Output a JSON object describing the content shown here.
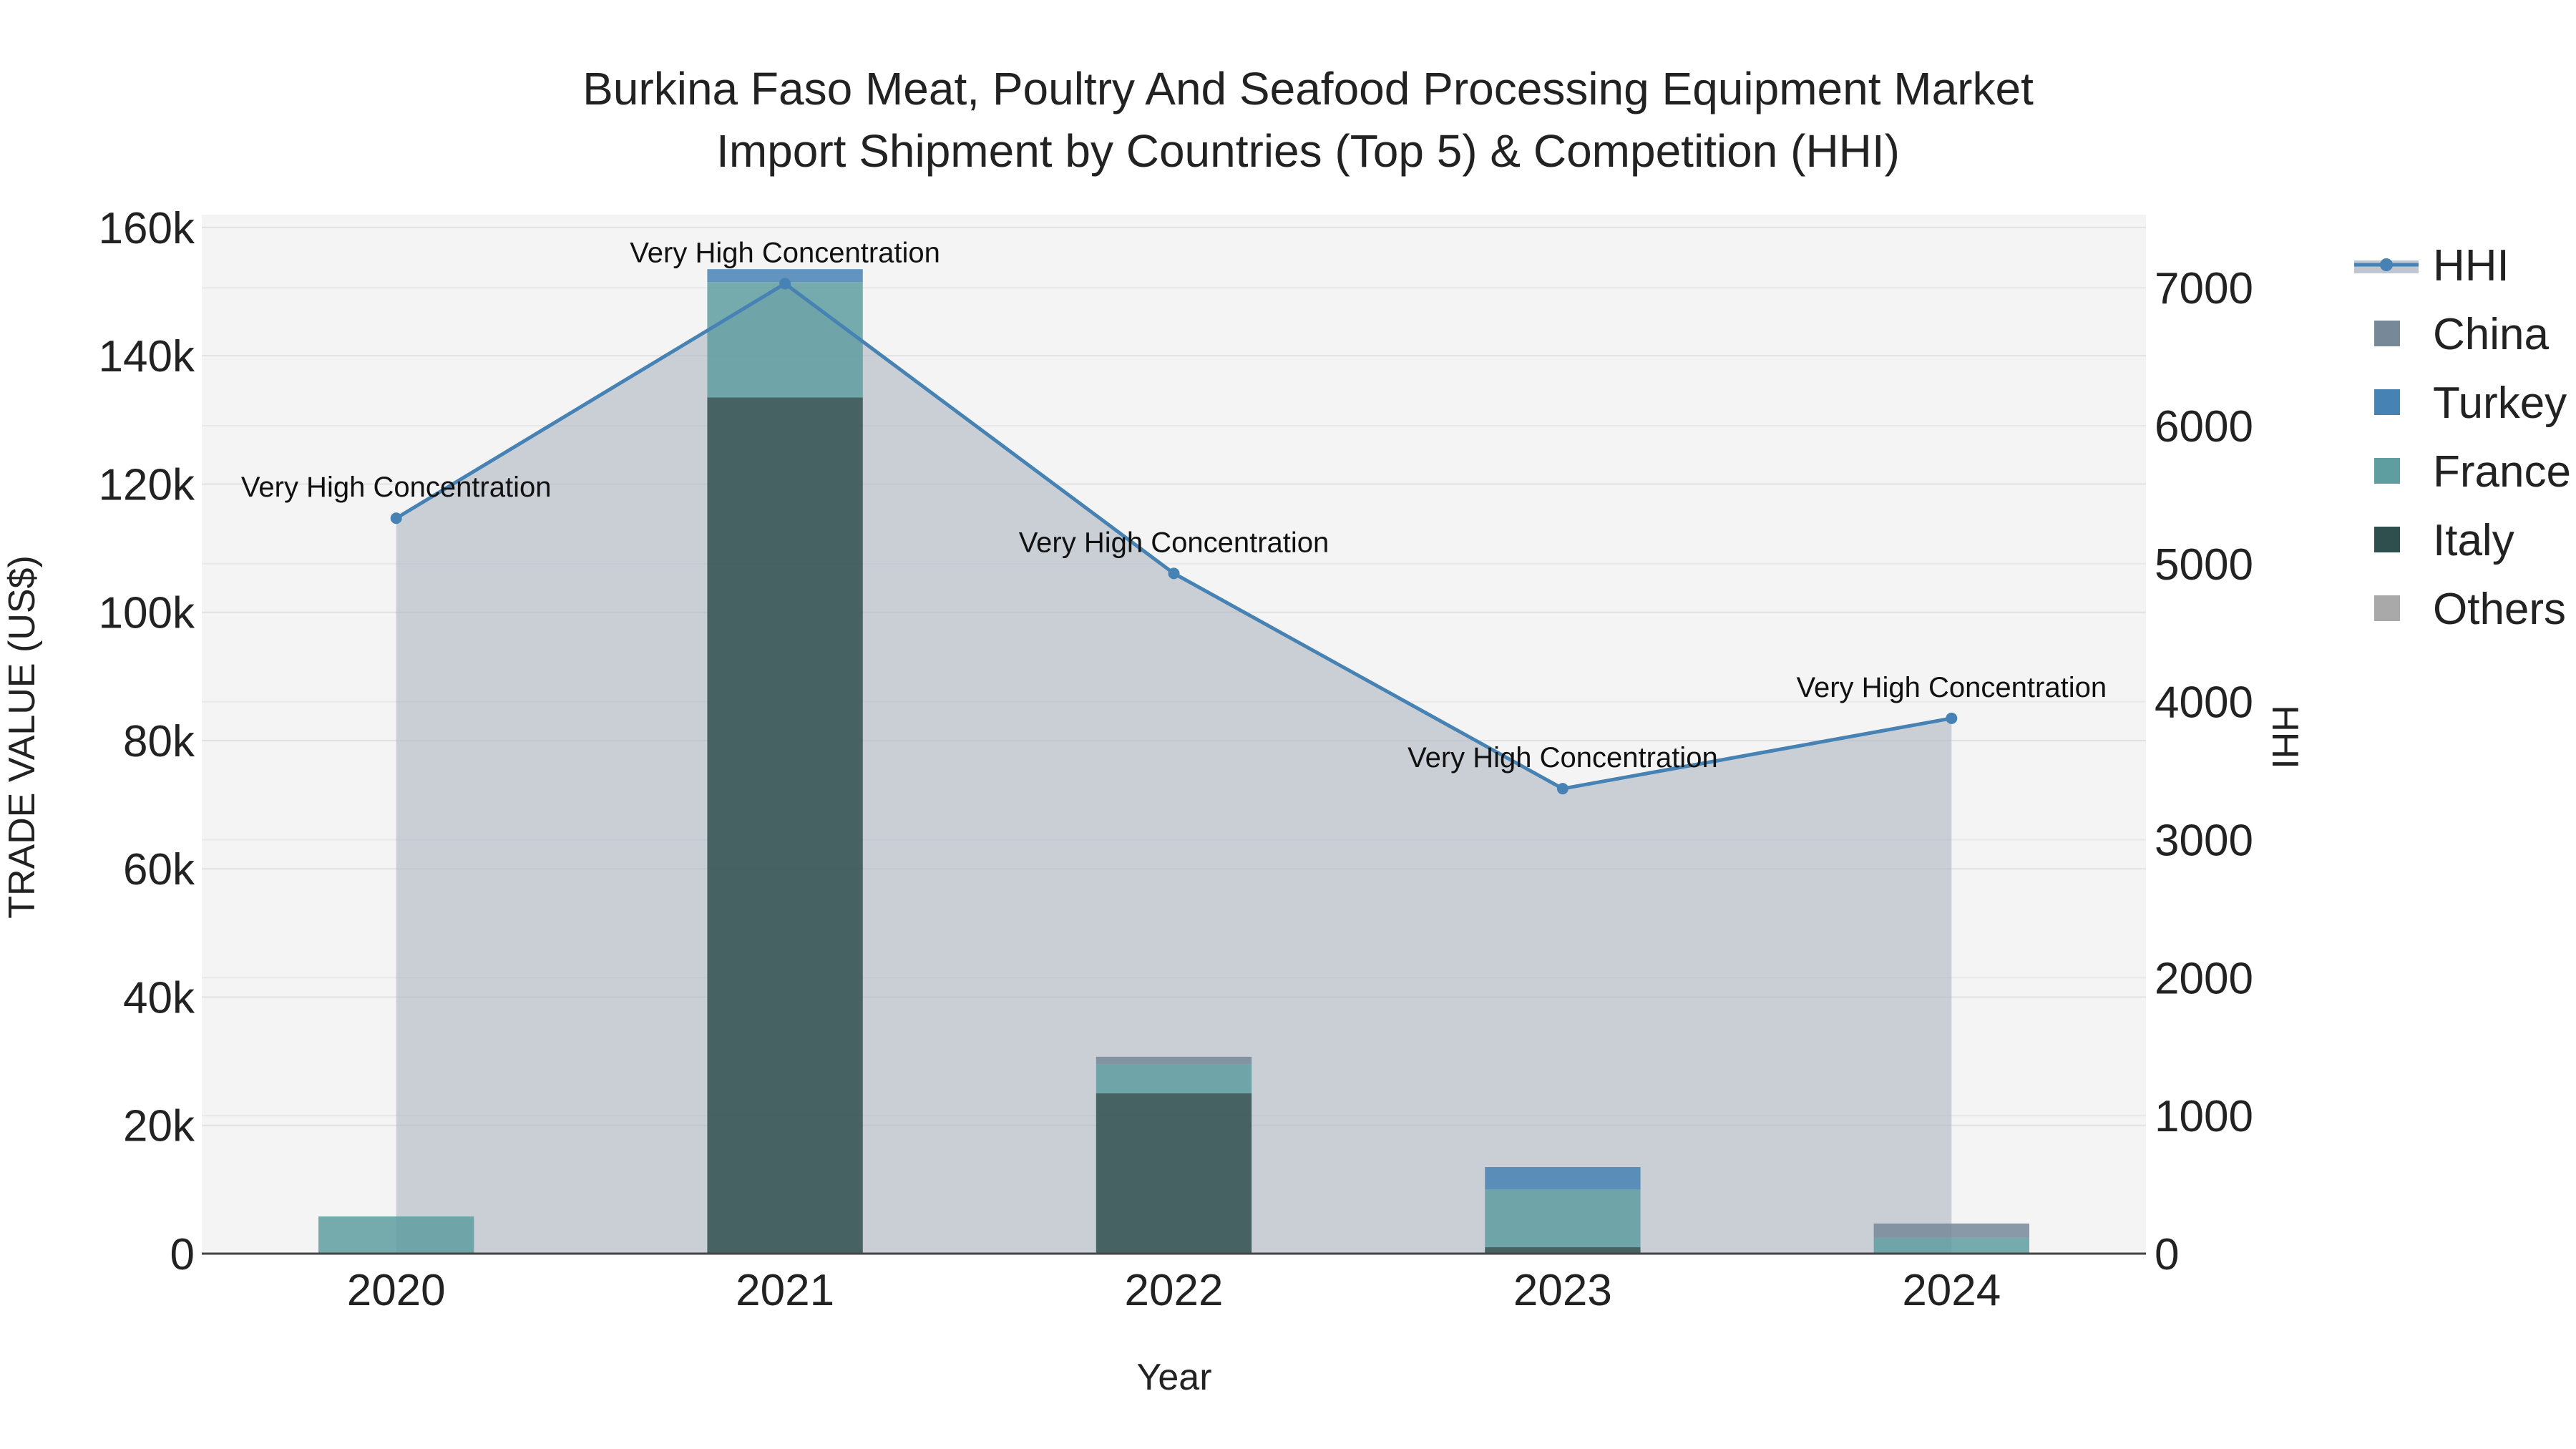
{
  "chart_data": {
    "type": "bar",
    "title_lines": [
      "Burkina Faso Meat, Poultry And Seafood Processing Equipment Market",
      "Import Shipment by Countries (Top 5) & Competition (HHI)"
    ],
    "xlabel": "Year",
    "ylabel": "TRADE VALUE (US$)",
    "y2label": "HHI",
    "categories": [
      "2020",
      "2021",
      "2022",
      "2023",
      "2024"
    ],
    "ylim": [
      0,
      162000
    ],
    "y2lim": [
      0,
      7530
    ],
    "yticks": [
      0,
      20000,
      40000,
      60000,
      80000,
      100000,
      120000,
      140000,
      160000
    ],
    "ytick_labels": [
      "0",
      "20k",
      "40k",
      "60k",
      "80k",
      "100k",
      "120k",
      "140k",
      "160k"
    ],
    "y2ticks": [
      0,
      1000,
      2000,
      3000,
      4000,
      5000,
      6000,
      7000
    ],
    "y2tick_labels": [
      "0",
      "1000",
      "2000",
      "3000",
      "4000",
      "5000",
      "6000",
      "7000"
    ],
    "series": [
      {
        "name": "Italy",
        "color": "#2f4f4f",
        "values": [
          0,
          133500,
          25000,
          1000,
          0
        ]
      },
      {
        "name": "France",
        "color": "#5f9ea0",
        "values": [
          5800,
          18000,
          4500,
          9000,
          2500
        ]
      },
      {
        "name": "Turkey",
        "color": "#4682b4",
        "values": [
          0,
          2000,
          0,
          3500,
          0
        ]
      },
      {
        "name": "China",
        "color": "#778899",
        "values": [
          0,
          0,
          1200,
          0,
          2200
        ]
      },
      {
        "name": "Others",
        "color": "#a9a9a9",
        "values": [
          0,
          0,
          0,
          0,
          0
        ]
      }
    ],
    "hhi": {
      "name": "HHI",
      "color": "#4682b4",
      "fill_color": "#b0b8c4",
      "values": [
        5330,
        7030,
        4930,
        3370,
        3880
      ],
      "labels": [
        "Very High Concentration",
        "Very High Concentration",
        "Very High Concentration",
        "Very High Concentration",
        "Very High Concentration"
      ]
    },
    "legend": [
      "HHI",
      "China",
      "Turkey",
      "France",
      "Italy",
      "Others"
    ],
    "legend_position": "right"
  }
}
